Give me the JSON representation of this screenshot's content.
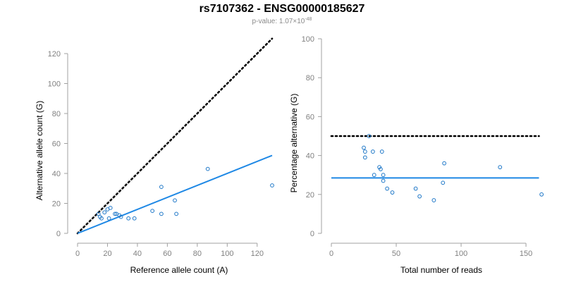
{
  "header": {
    "title": "rs7107362 - ENSG00000185627",
    "pvalue_prefix": "p-value: 1.07×10",
    "pvalue_exponent": "-48"
  },
  "colors": {
    "points": "#1f78c8",
    "fit_line": "#1e88e5",
    "reference_line": "#000000",
    "axis": "#a0a0a0"
  },
  "chart_data": [
    {
      "type": "scatter",
      "xlabel": "Reference allele count (A)",
      "ylabel": "Alternative allele count (G)",
      "xlim": [
        0,
        130
      ],
      "ylim": [
        0,
        120
      ],
      "xticks": [
        0,
        20,
        40,
        60,
        80,
        100,
        120
      ],
      "yticks": [
        0,
        20,
        40,
        60,
        80,
        100,
        120
      ],
      "points": [
        [
          14,
          13
        ],
        [
          15,
          11
        ],
        [
          16,
          10
        ],
        [
          18,
          14
        ],
        [
          20,
          16
        ],
        [
          21,
          10
        ],
        [
          22,
          17
        ],
        [
          25,
          13
        ],
        [
          26,
          13
        ],
        [
          28,
          12
        ],
        [
          29,
          11
        ],
        [
          34,
          10
        ],
        [
          38,
          10
        ],
        [
          50,
          15
        ],
        [
          56,
          31
        ],
        [
          56,
          13
        ],
        [
          65,
          22
        ],
        [
          66,
          13
        ],
        [
          87,
          43
        ],
        [
          130,
          32
        ]
      ],
      "lines": [
        {
          "style": "dotted",
          "color": "#000000",
          "x": [
            0,
            130
          ],
          "y": [
            0,
            130
          ]
        },
        {
          "style": "solid",
          "color": "#1e88e5",
          "x": [
            0,
            130
          ],
          "y": [
            0,
            52
          ]
        }
      ]
    },
    {
      "type": "scatter",
      "xlabel": "Total number of reads",
      "ylabel": "Percentage alternative (G)",
      "xlim": [
        0,
        163
      ],
      "ylim": [
        0,
        100
      ],
      "xticks": [
        0,
        50,
        100,
        150
      ],
      "yticks": [
        0,
        20,
        40,
        60,
        80,
        100
      ],
      "points": [
        [
          25,
          44
        ],
        [
          26,
          42
        ],
        [
          26,
          39
        ],
        [
          29,
          50
        ],
        [
          32,
          42
        ],
        [
          33,
          30
        ],
        [
          37,
          34
        ],
        [
          38,
          33
        ],
        [
          39,
          42
        ],
        [
          40,
          30
        ],
        [
          40,
          27
        ],
        [
          43,
          23
        ],
        [
          47,
          21
        ],
        [
          65,
          23
        ],
        [
          68,
          19
        ],
        [
          79,
          17
        ],
        [
          86,
          26
        ],
        [
          87,
          36
        ],
        [
          130,
          34
        ],
        [
          162,
          20
        ]
      ],
      "lines": [
        {
          "style": "dotted",
          "color": "#000000",
          "x": [
            0,
            160
          ],
          "y": [
            50,
            50
          ]
        },
        {
          "style": "solid",
          "color": "#1e88e5",
          "x": [
            0,
            160
          ],
          "y": [
            28.5,
            28.5
          ]
        }
      ]
    }
  ]
}
